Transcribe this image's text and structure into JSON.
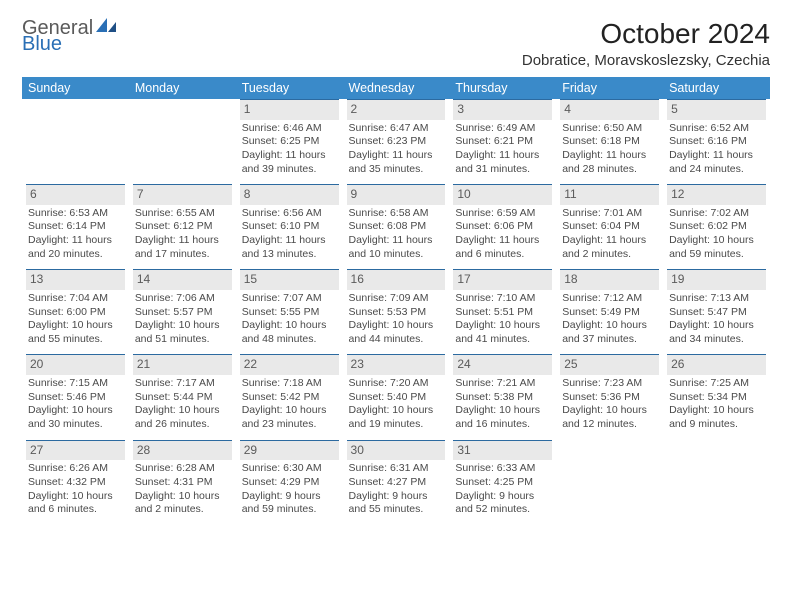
{
  "brand": {
    "word1": "General",
    "word2": "Blue"
  },
  "title": "October 2024",
  "subtitle": "Dobratice, Moravskoslezsky, Czechia",
  "colors": {
    "header_bg": "#3a8ac9",
    "header_text": "#ffffff",
    "daynum_bg": "#e9e9e9",
    "daynum_border": "#2c6aa0",
    "body_text": "#4a4a4a",
    "logo_gray": "#5a5a5a",
    "logo_blue": "#2a6fb5"
  },
  "dow": [
    "Sunday",
    "Monday",
    "Tuesday",
    "Wednesday",
    "Thursday",
    "Friday",
    "Saturday"
  ],
  "weeks": [
    [
      null,
      null,
      {
        "n": "1",
        "sr": "Sunrise: 6:46 AM",
        "ss": "Sunset: 6:25 PM",
        "dl1": "Daylight: 11 hours",
        "dl2": "and 39 minutes."
      },
      {
        "n": "2",
        "sr": "Sunrise: 6:47 AM",
        "ss": "Sunset: 6:23 PM",
        "dl1": "Daylight: 11 hours",
        "dl2": "and 35 minutes."
      },
      {
        "n": "3",
        "sr": "Sunrise: 6:49 AM",
        "ss": "Sunset: 6:21 PM",
        "dl1": "Daylight: 11 hours",
        "dl2": "and 31 minutes."
      },
      {
        "n": "4",
        "sr": "Sunrise: 6:50 AM",
        "ss": "Sunset: 6:18 PM",
        "dl1": "Daylight: 11 hours",
        "dl2": "and 28 minutes."
      },
      {
        "n": "5",
        "sr": "Sunrise: 6:52 AM",
        "ss": "Sunset: 6:16 PM",
        "dl1": "Daylight: 11 hours",
        "dl2": "and 24 minutes."
      }
    ],
    [
      {
        "n": "6",
        "sr": "Sunrise: 6:53 AM",
        "ss": "Sunset: 6:14 PM",
        "dl1": "Daylight: 11 hours",
        "dl2": "and 20 minutes."
      },
      {
        "n": "7",
        "sr": "Sunrise: 6:55 AM",
        "ss": "Sunset: 6:12 PM",
        "dl1": "Daylight: 11 hours",
        "dl2": "and 17 minutes."
      },
      {
        "n": "8",
        "sr": "Sunrise: 6:56 AM",
        "ss": "Sunset: 6:10 PM",
        "dl1": "Daylight: 11 hours",
        "dl2": "and 13 minutes."
      },
      {
        "n": "9",
        "sr": "Sunrise: 6:58 AM",
        "ss": "Sunset: 6:08 PM",
        "dl1": "Daylight: 11 hours",
        "dl2": "and 10 minutes."
      },
      {
        "n": "10",
        "sr": "Sunrise: 6:59 AM",
        "ss": "Sunset: 6:06 PM",
        "dl1": "Daylight: 11 hours",
        "dl2": "and 6 minutes."
      },
      {
        "n": "11",
        "sr": "Sunrise: 7:01 AM",
        "ss": "Sunset: 6:04 PM",
        "dl1": "Daylight: 11 hours",
        "dl2": "and 2 minutes."
      },
      {
        "n": "12",
        "sr": "Sunrise: 7:02 AM",
        "ss": "Sunset: 6:02 PM",
        "dl1": "Daylight: 10 hours",
        "dl2": "and 59 minutes."
      }
    ],
    [
      {
        "n": "13",
        "sr": "Sunrise: 7:04 AM",
        "ss": "Sunset: 6:00 PM",
        "dl1": "Daylight: 10 hours",
        "dl2": "and 55 minutes."
      },
      {
        "n": "14",
        "sr": "Sunrise: 7:06 AM",
        "ss": "Sunset: 5:57 PM",
        "dl1": "Daylight: 10 hours",
        "dl2": "and 51 minutes."
      },
      {
        "n": "15",
        "sr": "Sunrise: 7:07 AM",
        "ss": "Sunset: 5:55 PM",
        "dl1": "Daylight: 10 hours",
        "dl2": "and 48 minutes."
      },
      {
        "n": "16",
        "sr": "Sunrise: 7:09 AM",
        "ss": "Sunset: 5:53 PM",
        "dl1": "Daylight: 10 hours",
        "dl2": "and 44 minutes."
      },
      {
        "n": "17",
        "sr": "Sunrise: 7:10 AM",
        "ss": "Sunset: 5:51 PM",
        "dl1": "Daylight: 10 hours",
        "dl2": "and 41 minutes."
      },
      {
        "n": "18",
        "sr": "Sunrise: 7:12 AM",
        "ss": "Sunset: 5:49 PM",
        "dl1": "Daylight: 10 hours",
        "dl2": "and 37 minutes."
      },
      {
        "n": "19",
        "sr": "Sunrise: 7:13 AM",
        "ss": "Sunset: 5:47 PM",
        "dl1": "Daylight: 10 hours",
        "dl2": "and 34 minutes."
      }
    ],
    [
      {
        "n": "20",
        "sr": "Sunrise: 7:15 AM",
        "ss": "Sunset: 5:46 PM",
        "dl1": "Daylight: 10 hours",
        "dl2": "and 30 minutes."
      },
      {
        "n": "21",
        "sr": "Sunrise: 7:17 AM",
        "ss": "Sunset: 5:44 PM",
        "dl1": "Daylight: 10 hours",
        "dl2": "and 26 minutes."
      },
      {
        "n": "22",
        "sr": "Sunrise: 7:18 AM",
        "ss": "Sunset: 5:42 PM",
        "dl1": "Daylight: 10 hours",
        "dl2": "and 23 minutes."
      },
      {
        "n": "23",
        "sr": "Sunrise: 7:20 AM",
        "ss": "Sunset: 5:40 PM",
        "dl1": "Daylight: 10 hours",
        "dl2": "and 19 minutes."
      },
      {
        "n": "24",
        "sr": "Sunrise: 7:21 AM",
        "ss": "Sunset: 5:38 PM",
        "dl1": "Daylight: 10 hours",
        "dl2": "and 16 minutes."
      },
      {
        "n": "25",
        "sr": "Sunrise: 7:23 AM",
        "ss": "Sunset: 5:36 PM",
        "dl1": "Daylight: 10 hours",
        "dl2": "and 12 minutes."
      },
      {
        "n": "26",
        "sr": "Sunrise: 7:25 AM",
        "ss": "Sunset: 5:34 PM",
        "dl1": "Daylight: 10 hours",
        "dl2": "and 9 minutes."
      }
    ],
    [
      {
        "n": "27",
        "sr": "Sunrise: 6:26 AM",
        "ss": "Sunset: 4:32 PM",
        "dl1": "Daylight: 10 hours",
        "dl2": "and 6 minutes."
      },
      {
        "n": "28",
        "sr": "Sunrise: 6:28 AM",
        "ss": "Sunset: 4:31 PM",
        "dl1": "Daylight: 10 hours",
        "dl2": "and 2 minutes."
      },
      {
        "n": "29",
        "sr": "Sunrise: 6:30 AM",
        "ss": "Sunset: 4:29 PM",
        "dl1": "Daylight: 9 hours",
        "dl2": "and 59 minutes."
      },
      {
        "n": "30",
        "sr": "Sunrise: 6:31 AM",
        "ss": "Sunset: 4:27 PM",
        "dl1": "Daylight: 9 hours",
        "dl2": "and 55 minutes."
      },
      {
        "n": "31",
        "sr": "Sunrise: 6:33 AM",
        "ss": "Sunset: 4:25 PM",
        "dl1": "Daylight: 9 hours",
        "dl2": "and 52 minutes."
      },
      null,
      null
    ]
  ]
}
